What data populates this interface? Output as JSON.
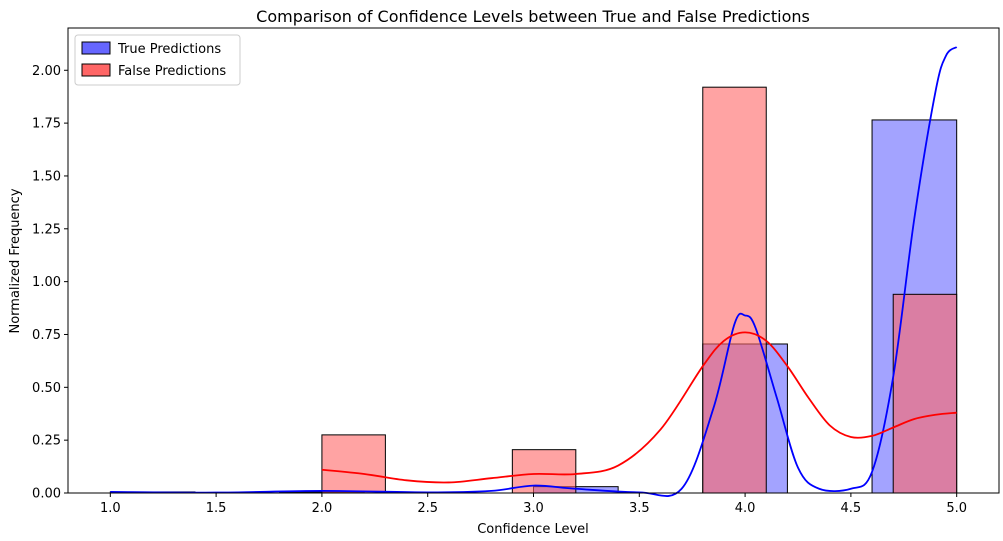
{
  "chart_data": {
    "type": "bar",
    "title": "Comparison of Confidence Levels between True and False Predictions",
    "xlabel": "Confidence Level",
    "ylabel": "Normalized Frequency",
    "xlim": [
      0.8,
      5.2
    ],
    "ylim": [
      0,
      2.2
    ],
    "xticks": [
      "1.0",
      "1.5",
      "2.0",
      "2.5",
      "3.0",
      "3.5",
      "4.0",
      "4.5",
      "5.0"
    ],
    "yticks": [
      "0.00",
      "0.25",
      "0.50",
      "0.75",
      "1.00",
      "1.25",
      "1.50",
      "1.75",
      "2.00"
    ],
    "grid": false,
    "legend_position": "top-left",
    "series": [
      {
        "name": "True Predictions",
        "color": "#6666ff",
        "kde_color": "#0000ff",
        "bins": [
          {
            "x0": 1.0,
            "x1": 1.4,
            "value": 0.005
          },
          {
            "x0": 1.4,
            "x1": 1.8,
            "value": 0.0
          },
          {
            "x0": 1.8,
            "x1": 2.2,
            "value": 0.005
          },
          {
            "x0": 2.2,
            "x1": 2.6,
            "value": 0.0
          },
          {
            "x0": 2.6,
            "x1": 3.0,
            "value": 0.0
          },
          {
            "x0": 3.0,
            "x1": 3.4,
            "value": 0.03
          },
          {
            "x0": 3.4,
            "x1": 3.8,
            "value": 0.0
          },
          {
            "x0": 3.8,
            "x1": 4.2,
            "value": 0.705
          },
          {
            "x0": 4.2,
            "x1": 4.6,
            "value": 0.0
          },
          {
            "x0": 4.6,
            "x1": 5.0,
            "value": 1.765
          }
        ],
        "kde": [
          [
            1.0,
            0.005
          ],
          [
            1.5,
            0.002
          ],
          [
            2.0,
            0.01
          ],
          [
            2.5,
            0.003
          ],
          [
            2.8,
            0.01
          ],
          [
            3.0,
            0.035
          ],
          [
            3.2,
            0.02
          ],
          [
            3.5,
            0.003
          ],
          [
            3.7,
            0.02
          ],
          [
            3.85,
            0.4
          ],
          [
            3.95,
            0.8
          ],
          [
            4.0,
            0.84
          ],
          [
            4.05,
            0.78
          ],
          [
            4.15,
            0.45
          ],
          [
            4.25,
            0.12
          ],
          [
            4.35,
            0.02
          ],
          [
            4.5,
            0.02
          ],
          [
            4.6,
            0.1
          ],
          [
            4.7,
            0.55
          ],
          [
            4.8,
            1.3
          ],
          [
            4.9,
            1.9
          ],
          [
            4.95,
            2.07
          ],
          [
            5.0,
            2.11
          ]
        ]
      },
      {
        "name": "False Predictions",
        "color": "#ff6666",
        "kde_color": "#ff0000",
        "bins": [
          {
            "x0": 2.0,
            "x1": 2.3,
            "value": 0.275
          },
          {
            "x0": 2.3,
            "x1": 2.6,
            "value": 0.0
          },
          {
            "x0": 2.6,
            "x1": 2.9,
            "value": 0.0
          },
          {
            "x0": 2.9,
            "x1": 3.2,
            "value": 0.205
          },
          {
            "x0": 3.2,
            "x1": 3.5,
            "value": 0.0
          },
          {
            "x0": 3.5,
            "x1": 3.8,
            "value": 0.0
          },
          {
            "x0": 3.8,
            "x1": 4.1,
            "value": 1.92
          },
          {
            "x0": 4.1,
            "x1": 4.4,
            "value": 0.0
          },
          {
            "x0": 4.4,
            "x1": 4.7,
            "value": 0.0
          },
          {
            "x0": 4.7,
            "x1": 5.0,
            "value": 0.94
          }
        ],
        "kde": [
          [
            2.0,
            0.11
          ],
          [
            2.2,
            0.09
          ],
          [
            2.4,
            0.06
          ],
          [
            2.6,
            0.05
          ],
          [
            2.8,
            0.07
          ],
          [
            3.0,
            0.09
          ],
          [
            3.2,
            0.09
          ],
          [
            3.4,
            0.13
          ],
          [
            3.6,
            0.3
          ],
          [
            3.8,
            0.6
          ],
          [
            3.9,
            0.72
          ],
          [
            4.0,
            0.76
          ],
          [
            4.1,
            0.72
          ],
          [
            4.2,
            0.6
          ],
          [
            4.3,
            0.45
          ],
          [
            4.4,
            0.32
          ],
          [
            4.5,
            0.265
          ],
          [
            4.6,
            0.27
          ],
          [
            4.7,
            0.31
          ],
          [
            4.8,
            0.35
          ],
          [
            4.9,
            0.37
          ],
          [
            5.0,
            0.38
          ]
        ]
      }
    ]
  }
}
